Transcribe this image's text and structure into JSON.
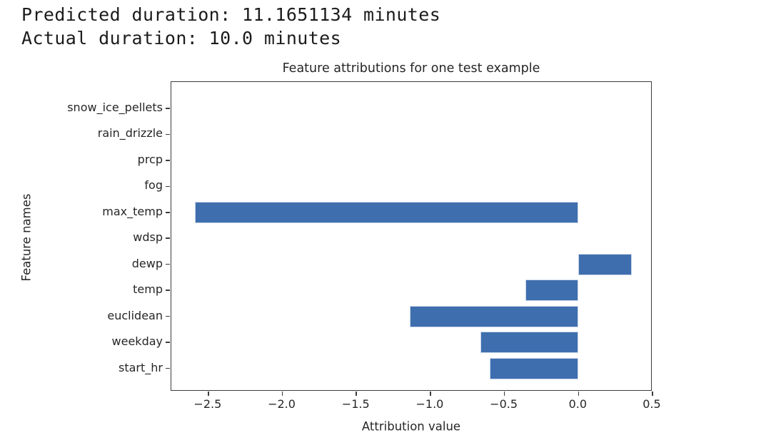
{
  "header": {
    "line1": "Predicted duration: 11.1651134 minutes",
    "line2": "Actual duration: 10.0 minutes"
  },
  "chart_data": {
    "type": "bar",
    "orientation": "horizontal",
    "title": "Feature attributions for one test example",
    "xlabel": "Attribution value",
    "ylabel": "Feature names",
    "categories": [
      "snow_ice_pellets",
      "rain_drizzle",
      "prcp",
      "fog",
      "max_temp",
      "wdsp",
      "dewp",
      "temp",
      "euclidean",
      "weekday",
      "start_hr"
    ],
    "values": [
      0,
      0,
      0,
      0,
      -2.59,
      0,
      0.36,
      -0.36,
      -1.14,
      -0.66,
      -0.6
    ],
    "xlim": [
      -2.75,
      0.5
    ],
    "xticks": [
      -2.5,
      -2.0,
      -1.5,
      -1.0,
      -0.5,
      0.0,
      0.5
    ],
    "xtick_labels": [
      "−2.5",
      "−2.0",
      "−1.5",
      "−1.0",
      "−0.5",
      "0.0",
      "0.5"
    ],
    "grid": false,
    "legend": null,
    "bar_color": "#3f6eae",
    "bar_edge_color": "#c9d6ea",
    "spine_color": "#3c3c3c"
  }
}
